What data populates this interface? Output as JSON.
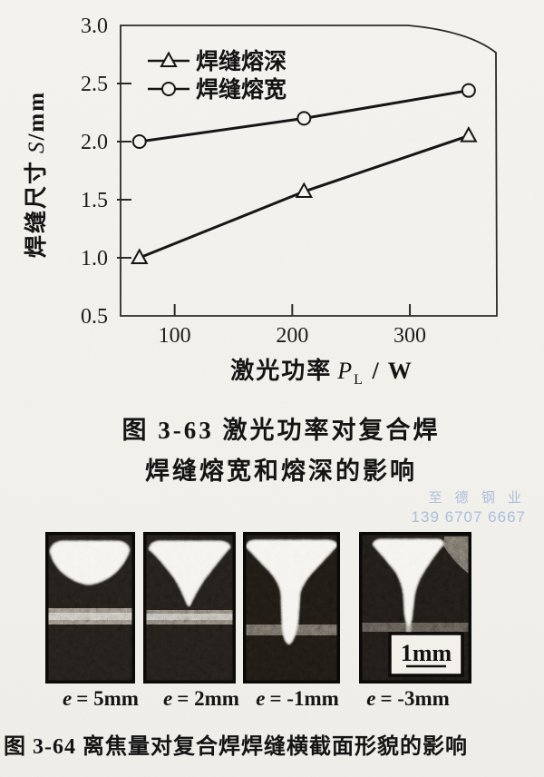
{
  "chart_data": {
    "type": "line",
    "x": [
      70,
      210,
      350
    ],
    "series": [
      {
        "name": "焊缝熔深",
        "marker": "triangle",
        "values": [
          1.0,
          1.57,
          2.05
        ]
      },
      {
        "name": "焊缝熔宽",
        "marker": "circle",
        "values": [
          2.0,
          2.2,
          2.44
        ]
      }
    ],
    "xlabel": {
      "cn": "激光功率",
      "sym": "P",
      "sub": "L",
      "unit": " / W"
    },
    "ylabel": {
      "cn": "焊缝尺寸",
      "sym": "S",
      "unit": "/mm"
    },
    "xticks": [
      100,
      200,
      300
    ],
    "yticks": [
      "0.5",
      "1.0",
      "1.5",
      "2.0",
      "2.5",
      "3.0"
    ],
    "xlim": [
      54,
      374
    ],
    "ylim": [
      0.5,
      3.0
    ],
    "legend_position": "top-left",
    "grid": false,
    "marker_style": "open",
    "line_color": "#161616"
  },
  "figure63": {
    "caption_line1": "图 3-63  激光功率对复合焊",
    "caption_line2": "焊缝熔宽和熔深的影响"
  },
  "watermark": {
    "line1": "至 德 钢 业",
    "line2": "139 6707 6667",
    "color": "#a5bbe0"
  },
  "figure64": {
    "panels": [
      {
        "sym": "e",
        "eq": "= 5mm"
      },
      {
        "sym": "e",
        "eq": "= 2mm"
      },
      {
        "sym": "e",
        "eq": "= -1mm"
      },
      {
        "sym": "e",
        "eq": "= -3mm"
      }
    ],
    "scale_label": "1mm",
    "caption": "图 3-64  离焦量对复合焊焊缝横截面形貌的影响"
  }
}
